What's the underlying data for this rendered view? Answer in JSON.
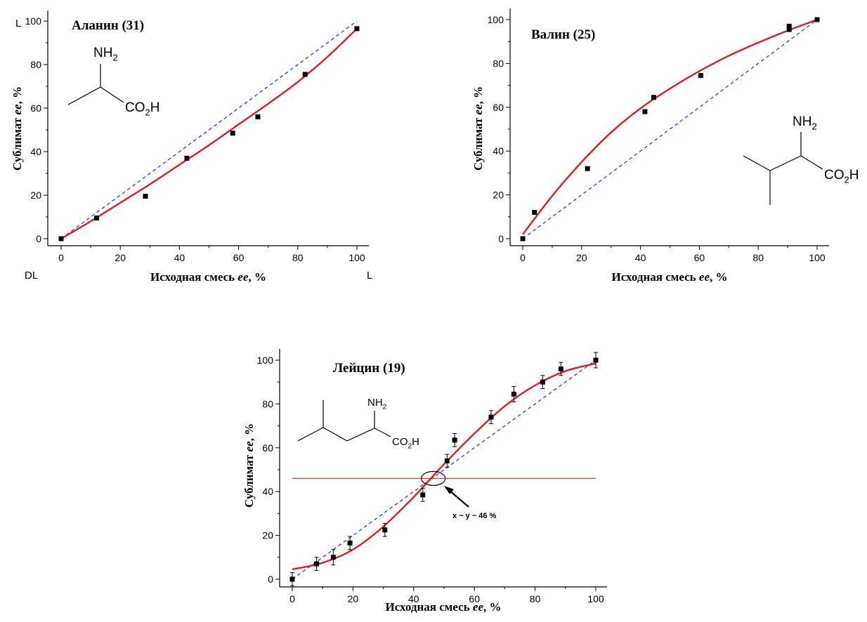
{
  "chart_data": [
    {
      "type": "scatter",
      "title": "Аланин (31)",
      "xlabel": "Исходная смесь ee, %",
      "ylabel": "Сублимат ee, %",
      "xlim": [
        0,
        100
      ],
      "ylim": [
        0,
        100
      ],
      "xticks": [
        "0",
        "20",
        "40",
        "60",
        "80",
        "100"
      ],
      "yticks": [
        "0",
        "20",
        "40",
        "60",
        "80",
        "100"
      ],
      "corner_labels": {
        "y_top": "L",
        "x_left": "DL",
        "x_right": "L"
      },
      "structure": {
        "amine": "NH",
        "amine_sub": "2",
        "acid": "CO",
        "acid_sub": "2",
        "acid_end": "H"
      },
      "series": [
        {
          "points": [
            [
              0,
              0
            ],
            [
              12,
              9.5
            ],
            [
              28.5,
              19.5
            ],
            [
              42.5,
              37
            ],
            [
              58,
              48.5
            ],
            [
              66.5,
              56
            ],
            [
              82.5,
              75.5
            ],
            [
              100,
              96.5
            ]
          ]
        }
      ],
      "fit_curve": [
        [
          0,
          0
        ],
        [
          10,
          8
        ],
        [
          20,
          16.5
        ],
        [
          30,
          25
        ],
        [
          40,
          34
        ],
        [
          50,
          43
        ],
        [
          60,
          52.5
        ],
        [
          70,
          62
        ],
        [
          80,
          72
        ],
        [
          90,
          83.5
        ],
        [
          100,
          96.5
        ]
      ],
      "reference_line": {
        "style": "dashed",
        "from": [
          0,
          0
        ],
        "to": [
          100,
          100
        ]
      },
      "grid": false
    },
    {
      "type": "scatter",
      "title": "Валин (25)",
      "xlabel": "Исходная смесь ee, %",
      "ylabel": "Сублимат ee, %",
      "xlim": [
        0,
        100
      ],
      "ylim": [
        0,
        100
      ],
      "xticks": [
        "0",
        "20",
        "40",
        "60",
        "80",
        "100"
      ],
      "yticks": [
        "0",
        "20",
        "40",
        "60",
        "80",
        "100"
      ],
      "structure": {
        "amine": "NH",
        "amine_sub": "2",
        "acid": "CO",
        "acid_sub": "2",
        "acid_end": "H"
      },
      "series": [
        {
          "points": [
            [
              0,
              0
            ],
            [
              4,
              12
            ],
            [
              22,
              32
            ],
            [
              41.5,
              58
            ],
            [
              44.5,
              64.5
            ],
            [
              60.5,
              74.5
            ],
            [
              90.5,
              95.5
            ],
            [
              90.5,
              97
            ],
            [
              100,
              100
            ]
          ]
        }
      ],
      "fit_curve": [
        [
          0,
          2
        ],
        [
          10,
          19.5
        ],
        [
          20,
          35
        ],
        [
          30,
          48.5
        ],
        [
          40,
          59.5
        ],
        [
          50,
          68.5
        ],
        [
          60,
          76.5
        ],
        [
          70,
          83.5
        ],
        [
          80,
          89.5
        ],
        [
          90,
          95
        ],
        [
          100,
          100
        ]
      ],
      "reference_line": {
        "style": "dashed",
        "from": [
          0,
          0
        ],
        "to": [
          100,
          100
        ]
      },
      "grid": false
    },
    {
      "type": "scatter",
      "title": "Лейцин (19)",
      "xlabel": "Исходная смесь ee, %",
      "ylabel": "Сублимат ee, %",
      "xlim": [
        0,
        100
      ],
      "ylim": [
        0,
        100
      ],
      "xticks": [
        "0",
        "20",
        "40",
        "60",
        "80",
        "100"
      ],
      "yticks": [
        "0",
        "20",
        "40",
        "60",
        "80",
        "100"
      ],
      "structure": {
        "amine": "NH",
        "amine_sub": "2",
        "acid": "CO",
        "acid_sub": "2",
        "acid_end": "H"
      },
      "series": [
        {
          "points": [
            [
              0,
              0
            ],
            [
              8,
              7
            ],
            [
              13.5,
              10
            ],
            [
              19,
              16.5
            ],
            [
              30.5,
              22.5
            ],
            [
              43,
              38.5
            ],
            [
              51,
              54
            ],
            [
              53.5,
              63.5
            ],
            [
              65.5,
              74
            ],
            [
              73,
              84.5
            ],
            [
              82.5,
              90
            ],
            [
              88.5,
              96
            ],
            [
              100,
              100
            ]
          ],
          "errors": [
            3,
            3,
            3.5,
            3,
            3,
            3,
            3,
            3,
            3,
            3.5,
            3,
            3,
            3.5
          ]
        }
      ],
      "fit_curve": [
        [
          0,
          4.5
        ],
        [
          10,
          7.5
        ],
        [
          20,
          13.5
        ],
        [
          30,
          24
        ],
        [
          40,
          37.5
        ],
        [
          45,
          45
        ],
        [
          50,
          52.5
        ],
        [
          60,
          66.5
        ],
        [
          70,
          79
        ],
        [
          80,
          88.5
        ],
        [
          90,
          95
        ],
        [
          100,
          98.5
        ]
      ],
      "reference_line": {
        "style": "dashed",
        "from": [
          0,
          0
        ],
        "to": [
          100,
          100
        ]
      },
      "horizontal_line": {
        "y": 46,
        "x_from": 0,
        "x_to": 100
      },
      "annotation": {
        "text": "x ~ y ~ 46 %",
        "target": [
          46,
          46
        ]
      },
      "grid": false
    }
  ],
  "colors": {
    "fit": "#e31a1c",
    "reference": "#1f3fd1",
    "marker": "#000000",
    "hline": "#ff2a2a"
  }
}
